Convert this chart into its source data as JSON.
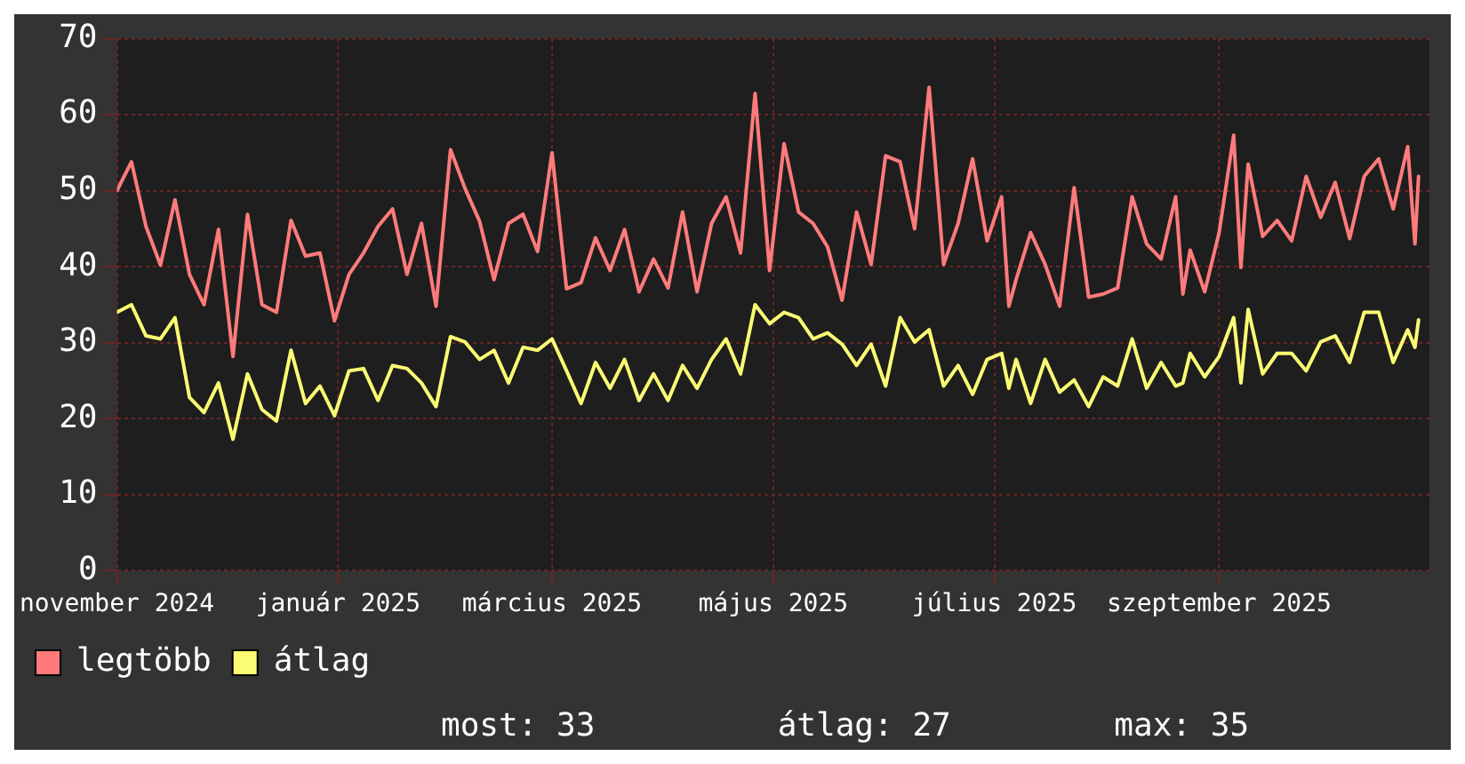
{
  "chart_data": {
    "type": "line",
    "x": [
      "2024-11-01",
      "2024-11-05",
      "2024-11-09",
      "2024-11-13",
      "2024-11-17",
      "2024-11-21",
      "2024-11-25",
      "2024-11-29",
      "2024-12-03",
      "2024-12-07",
      "2024-12-11",
      "2024-12-15",
      "2024-12-19",
      "2024-12-23",
      "2024-12-27",
      "2024-12-31",
      "2025-01-04",
      "2025-01-08",
      "2025-01-12",
      "2025-01-16",
      "2025-01-20",
      "2025-01-24",
      "2025-01-28",
      "2025-02-01",
      "2025-02-05",
      "2025-02-09",
      "2025-02-13",
      "2025-02-17",
      "2025-02-21",
      "2025-02-25",
      "2025-03-01",
      "2025-03-05",
      "2025-03-09",
      "2025-03-13",
      "2025-03-17",
      "2025-03-21",
      "2025-03-25",
      "2025-03-29",
      "2025-04-02",
      "2025-04-06",
      "2025-04-10",
      "2025-04-14",
      "2025-04-18",
      "2025-04-22",
      "2025-04-26",
      "2025-04-30",
      "2025-05-04",
      "2025-05-08",
      "2025-05-12",
      "2025-05-16",
      "2025-05-20",
      "2025-05-24",
      "2025-05-28",
      "2025-06-01",
      "2025-06-05",
      "2025-06-09",
      "2025-06-13",
      "2025-06-17",
      "2025-06-21",
      "2025-06-25",
      "2025-06-29",
      "2025-07-03",
      "2025-07-05",
      "2025-07-07",
      "2025-07-11",
      "2025-07-15",
      "2025-07-19",
      "2025-07-23",
      "2025-07-27",
      "2025-07-31",
      "2025-08-04",
      "2025-08-08",
      "2025-08-12",
      "2025-08-16",
      "2025-08-20",
      "2025-08-22",
      "2025-08-24",
      "2025-08-28",
      "2025-09-01",
      "2025-09-05",
      "2025-09-07",
      "2025-09-09",
      "2025-09-13",
      "2025-09-17",
      "2025-09-21",
      "2025-09-25",
      "2025-09-29",
      "2025-10-03",
      "2025-10-07",
      "2025-10-11",
      "2025-10-15",
      "2025-10-19",
      "2025-10-23",
      "2025-10-25",
      "2025-10-26"
    ],
    "series": [
      {
        "name": "legtöbb",
        "color": "#ff7b7b",
        "values": [
          50,
          53.8,
          45.3,
          40.2,
          48.8,
          39,
          35,
          44.9,
          28.2,
          46.9,
          35,
          34,
          46.1,
          41.4,
          41.8,
          32.9,
          39,
          41.8,
          45.3,
          47.6,
          39,
          45.7,
          34.8,
          55.4,
          50.3,
          46,
          38.3,
          45.7,
          46.9,
          42,
          55,
          37.1,
          37.9,
          43.8,
          39.5,
          44.9,
          36.7,
          41,
          37.2,
          47.2,
          36.7,
          45.7,
          49.2,
          41.8,
          62.8,
          39.5,
          56.2,
          47.2,
          45.7,
          42.6,
          35.6,
          47.2,
          40.3,
          54.6,
          53.8,
          45,
          63.6,
          40.3,
          45.7,
          54.2,
          43.4,
          49.2,
          34.8,
          38.3,
          44.5,
          40.3,
          34.8,
          50.4,
          36,
          36.4,
          37.2,
          49.2,
          43,
          41,
          49.2,
          36.4,
          42.2,
          36.7,
          44.5,
          57.3,
          39.9,
          53.5,
          44,
          46.1,
          43.4,
          51.9,
          46.5,
          51.1,
          43.7,
          51.9,
          54.2,
          47.6,
          55.8,
          43,
          51.9
        ]
      },
      {
        "name": "átlag",
        "color": "#fbfb74",
        "values": [
          34,
          35,
          30.9,
          30.5,
          33.3,
          22.8,
          20.8,
          24.7,
          17.3,
          25.9,
          21.2,
          19.7,
          29,
          22,
          24.3,
          20.4,
          26.3,
          26.6,
          22.4,
          27,
          26.6,
          24.7,
          21.6,
          30.8,
          30.1,
          27.8,
          29,
          24.7,
          29.4,
          29,
          30.5,
          26.3,
          22,
          27.4,
          24,
          27.8,
          22.4,
          25.9,
          22.4,
          27,
          24,
          27.8,
          30.5,
          25.9,
          35,
          32.5,
          34,
          33.3,
          30.5,
          31.3,
          29.8,
          27,
          29.8,
          24.3,
          33.3,
          30.1,
          31.7,
          24.3,
          27,
          23.2,
          27.8,
          28.6,
          24,
          27.8,
          22,
          27.8,
          23.5,
          25.1,
          21.6,
          25.5,
          24.3,
          30.5,
          24,
          27.4,
          24.3,
          24.7,
          28.6,
          25.5,
          28.2,
          33.3,
          24.7,
          34.4,
          25.9,
          28.6,
          28.6,
          26.3,
          30.1,
          30.9,
          27.4,
          34,
          34,
          27.4,
          31.7,
          29.4,
          33
        ]
      }
    ],
    "xlim": [
      "2024-11-01",
      "2025-10-29"
    ],
    "xticks": [
      {
        "value": "2024-11-01",
        "label": "november 2024"
      },
      {
        "value": "2025-01-01",
        "label": "január 2025"
      },
      {
        "value": "2025-03-01",
        "label": "március 2025"
      },
      {
        "value": "2025-05-01",
        "label": "május 2025"
      },
      {
        "value": "2025-07-01",
        "label": "július 2025"
      },
      {
        "value": "2025-09-01",
        "label": "szeptember 2025"
      }
    ],
    "ylim": [
      0,
      70
    ],
    "yticks": [
      0,
      10,
      20,
      30,
      40,
      50,
      60,
      70
    ],
    "grid": true,
    "legend": "bottom left",
    "marker": "none",
    "line_style": "solid",
    "annotations": [
      "most: 33",
      "átlag: 27",
      "max: 35"
    ]
  }
}
